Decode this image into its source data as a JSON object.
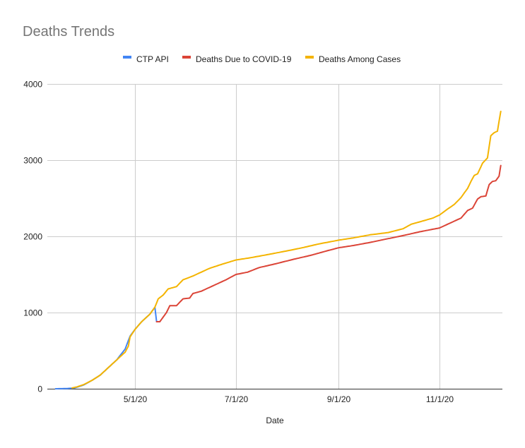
{
  "chart_data": {
    "type": "line",
    "title": "Deaths Trends",
    "xlabel": "Date",
    "ylabel": "",
    "ylim": [
      0,
      4000
    ],
    "xlim": [
      "2020-03-09",
      "2020-12-09"
    ],
    "yticks": [
      0,
      1000,
      2000,
      3000,
      4000
    ],
    "xticks": [
      {
        "date": "2020-05-01",
        "label": "5/1/20"
      },
      {
        "date": "2020-07-01",
        "label": "7/1/20"
      },
      {
        "date": "2020-09-01",
        "label": "9/1/20"
      },
      {
        "date": "2020-11-01",
        "label": "11/1/20"
      }
    ],
    "grid": true,
    "legend": "top",
    "series": [
      {
        "name": "CTP API",
        "color": "#4285f4",
        "points": [
          [
            "2020-03-14",
            0
          ],
          [
            "2020-03-20",
            2
          ],
          [
            "2020-03-25",
            8
          ],
          [
            "2020-03-27",
            20
          ],
          [
            "2020-03-31",
            50
          ],
          [
            "2020-04-05",
            110
          ],
          [
            "2020-04-10",
            180
          ],
          [
            "2020-04-15",
            280
          ],
          [
            "2020-04-20",
            380
          ],
          [
            "2020-04-25",
            520
          ],
          [
            "2020-04-28",
            690
          ],
          [
            "2020-05-01",
            780
          ],
          [
            "2020-05-05",
            880
          ],
          [
            "2020-05-10",
            980
          ],
          [
            "2020-05-13",
            1070
          ],
          [
            "2020-05-14",
            880
          ],
          [
            "2020-05-16",
            880
          ]
        ]
      },
      {
        "name": "Deaths Due to COVID-19",
        "color": "#db4437",
        "points": [
          [
            "2020-05-14",
            880
          ],
          [
            "2020-05-16",
            880
          ],
          [
            "2020-05-20",
            1000
          ],
          [
            "2020-05-22",
            1090
          ],
          [
            "2020-05-26",
            1090
          ],
          [
            "2020-05-30",
            1180
          ],
          [
            "2020-06-03",
            1190
          ],
          [
            "2020-06-05",
            1250
          ],
          [
            "2020-06-10",
            1280
          ],
          [
            "2020-06-15",
            1330
          ],
          [
            "2020-06-20",
            1380
          ],
          [
            "2020-06-25",
            1430
          ],
          [
            "2020-07-01",
            1500
          ],
          [
            "2020-07-08",
            1530
          ],
          [
            "2020-07-15",
            1590
          ],
          [
            "2020-07-25",
            1640
          ],
          [
            "2020-08-05",
            1700
          ],
          [
            "2020-08-15",
            1750
          ],
          [
            "2020-08-25",
            1810
          ],
          [
            "2020-09-01",
            1850
          ],
          [
            "2020-09-10",
            1880
          ],
          [
            "2020-09-20",
            1920
          ],
          [
            "2020-10-01",
            1970
          ],
          [
            "2020-10-10",
            2010
          ],
          [
            "2020-10-20",
            2060
          ],
          [
            "2020-11-01",
            2110
          ],
          [
            "2020-11-08",
            2180
          ],
          [
            "2020-11-14",
            2240
          ],
          [
            "2020-11-18",
            2340
          ],
          [
            "2020-11-21",
            2370
          ],
          [
            "2020-11-24",
            2490
          ],
          [
            "2020-11-26",
            2520
          ],
          [
            "2020-11-29",
            2530
          ],
          [
            "2020-12-01",
            2680
          ],
          [
            "2020-12-03",
            2720
          ],
          [
            "2020-12-05",
            2730
          ],
          [
            "2020-12-07",
            2790
          ],
          [
            "2020-12-08",
            2930
          ]
        ]
      },
      {
        "name": "Deaths Among Cases",
        "color": "#f4b400",
        "points": [
          [
            "2020-03-24",
            10
          ],
          [
            "2020-03-27",
            25
          ],
          [
            "2020-03-31",
            55
          ],
          [
            "2020-04-05",
            110
          ],
          [
            "2020-04-10",
            180
          ],
          [
            "2020-04-15",
            280
          ],
          [
            "2020-04-20",
            380
          ],
          [
            "2020-04-25",
            480
          ],
          [
            "2020-04-27",
            560
          ],
          [
            "2020-04-28",
            680
          ],
          [
            "2020-05-01",
            780
          ],
          [
            "2020-05-05",
            880
          ],
          [
            "2020-05-10",
            980
          ],
          [
            "2020-05-13",
            1070
          ],
          [
            "2020-05-15",
            1180
          ],
          [
            "2020-05-18",
            1230
          ],
          [
            "2020-05-21",
            1310
          ],
          [
            "2020-05-26",
            1340
          ],
          [
            "2020-05-30",
            1430
          ],
          [
            "2020-06-05",
            1480
          ],
          [
            "2020-06-10",
            1530
          ],
          [
            "2020-06-15",
            1580
          ],
          [
            "2020-06-22",
            1630
          ],
          [
            "2020-07-01",
            1690
          ],
          [
            "2020-07-10",
            1720
          ],
          [
            "2020-07-20",
            1760
          ],
          [
            "2020-08-01",
            1810
          ],
          [
            "2020-08-10",
            1850
          ],
          [
            "2020-08-20",
            1900
          ],
          [
            "2020-09-01",
            1950
          ],
          [
            "2020-09-10",
            1980
          ],
          [
            "2020-09-20",
            2020
          ],
          [
            "2020-10-01",
            2050
          ],
          [
            "2020-10-10",
            2100
          ],
          [
            "2020-10-15",
            2160
          ],
          [
            "2020-10-20",
            2190
          ],
          [
            "2020-10-28",
            2240
          ],
          [
            "2020-11-01",
            2280
          ],
          [
            "2020-11-06",
            2360
          ],
          [
            "2020-11-10",
            2420
          ],
          [
            "2020-11-14",
            2510
          ],
          [
            "2020-11-18",
            2630
          ],
          [
            "2020-11-20",
            2720
          ],
          [
            "2020-11-22",
            2800
          ],
          [
            "2020-11-24",
            2820
          ],
          [
            "2020-11-27",
            2960
          ],
          [
            "2020-11-30",
            3030
          ],
          [
            "2020-12-01",
            3180
          ],
          [
            "2020-12-02",
            3320
          ],
          [
            "2020-12-04",
            3360
          ],
          [
            "2020-12-06",
            3380
          ],
          [
            "2020-12-08",
            3640
          ]
        ]
      }
    ]
  }
}
